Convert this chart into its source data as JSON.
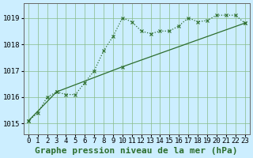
{
  "title": "Graphe pression niveau de la mer (hPa)",
  "bg_color": "#cceeff",
  "grid_color": "#88bb88",
  "line_color": "#2d6e2d",
  "xlim": [
    -0.5,
    23.5
  ],
  "ylim": [
    1014.6,
    1019.55
  ],
  "yticks": [
    1015,
    1016,
    1017,
    1018,
    1019
  ],
  "xticks": [
    0,
    1,
    2,
    3,
    4,
    5,
    6,
    7,
    8,
    9,
    10,
    11,
    12,
    13,
    14,
    15,
    16,
    17,
    18,
    19,
    20,
    21,
    22,
    23
  ],
  "series1_x": [
    0,
    1,
    2,
    3,
    4,
    5,
    6,
    7,
    8,
    9,
    10,
    11,
    12,
    13,
    14,
    15,
    16,
    17,
    18,
    19,
    20,
    21,
    22,
    23
  ],
  "series1_y": [
    1015.1,
    1015.4,
    1016.0,
    1016.2,
    1016.1,
    1016.1,
    1016.55,
    1017.0,
    1017.75,
    1018.3,
    1019.0,
    1018.85,
    1018.5,
    1018.4,
    1018.5,
    1018.5,
    1018.7,
    1019.0,
    1018.85,
    1018.9,
    1019.1,
    1019.1,
    1019.1,
    1018.8
  ],
  "series2_x": [
    0,
    3,
    10,
    23
  ],
  "series2_y": [
    1015.1,
    1016.2,
    1017.15,
    1018.8
  ],
  "title_fontsize": 8,
  "tick_fontsize": 6.5
}
